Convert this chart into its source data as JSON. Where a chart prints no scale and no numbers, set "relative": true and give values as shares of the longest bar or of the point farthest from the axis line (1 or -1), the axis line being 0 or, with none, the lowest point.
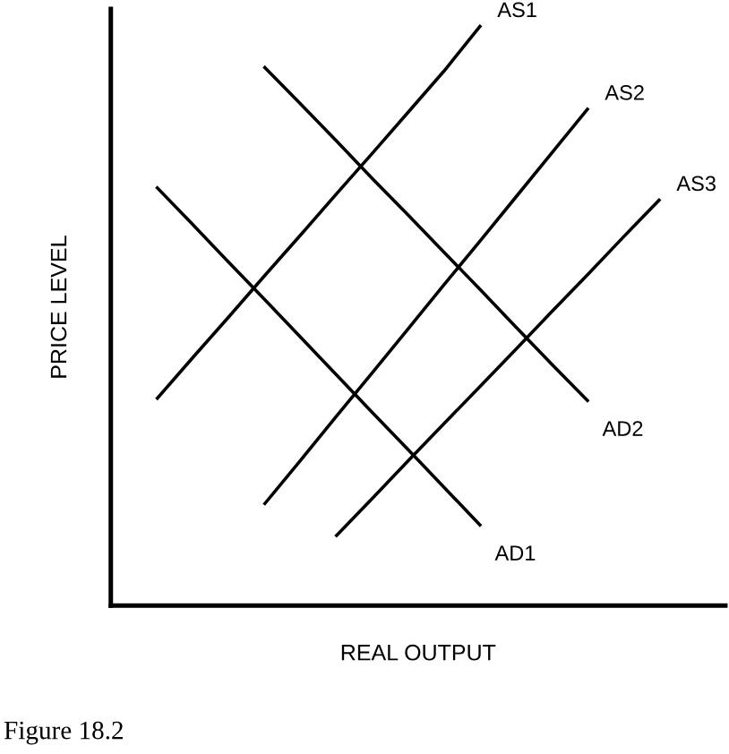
{
  "chart_data": {
    "type": "line",
    "relative": true,
    "xlabel": "REAL OUTPUT",
    "ylabel": "PRICE LEVEL",
    "marker": "none",
    "line_style": "solid",
    "categories": [
      null,
      null,
      null,
      null,
      null,
      null,
      null,
      null,
      null,
      null,
      null,
      null,
      null,
      null,
      null
    ],
    "series": [
      {
        "name": "AS1",
        "color": "#000000",
        "values": [
          0.358,
          0.429,
          0.499,
          0.57,
          0.64,
          0.711,
          0.781,
          0.852,
          0.923,
          1.0,
          null,
          null,
          null,
          null,
          null
        ]
      },
      {
        "name": "AS2",
        "color": "#000000",
        "values": [
          null,
          null,
          null,
          0.176,
          0.251,
          0.327,
          0.402,
          0.478,
          0.554,
          0.629,
          0.705,
          0.781,
          0.857,
          null,
          null
        ]
      },
      {
        "name": "AS3",
        "color": "#000000",
        "values": [
          null,
          null,
          null,
          null,
          null,
          0.121,
          0.185,
          0.25,
          0.314,
          0.378,
          0.442,
          0.507,
          0.571,
          0.636,
          0.7
        ]
      },
      {
        "name": "AD1",
        "color": "#000000",
        "values": [
          0.721,
          0.657,
          0.592,
          0.528,
          0.463,
          0.398,
          0.333,
          0.269,
          0.204,
          0.139,
          null,
          null,
          null,
          null,
          null
        ]
      },
      {
        "name": "AD2",
        "color": "#000000",
        "values": [
          null,
          null,
          null,
          0.929,
          0.866,
          0.802,
          0.737,
          0.674,
          0.61,
          0.546,
          0.481,
          0.417,
          0.354,
          null,
          null
        ]
      }
    ],
    "annotations": [
      "Figure 18.2"
    ]
  }
}
